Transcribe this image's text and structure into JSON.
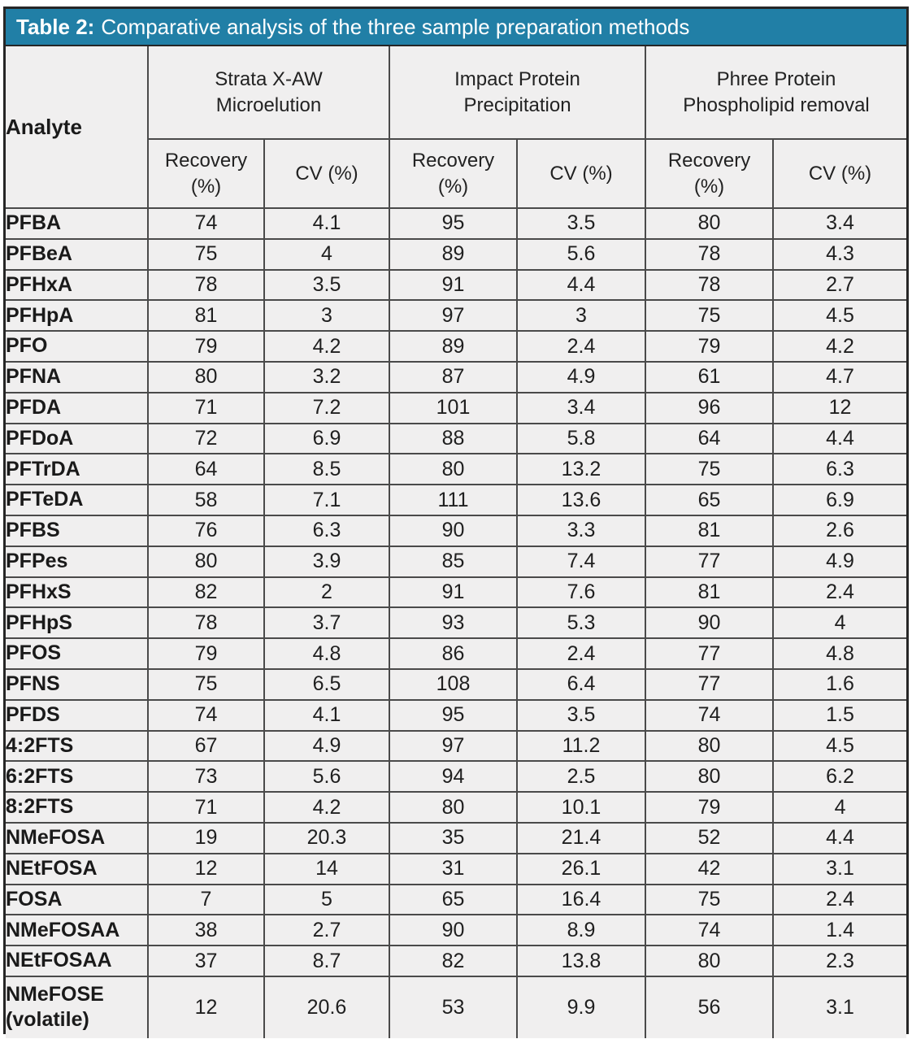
{
  "title": {
    "prefix": "Table 2:",
    "rest": "Comparative analysis of the three sample preparation methods"
  },
  "header": {
    "analyte_label": "Analyte",
    "groups": [
      {
        "line1": "Strata X-AW",
        "line2": "Microelution"
      },
      {
        "line1": "Impact Protein",
        "line2": "Precipitation"
      },
      {
        "line1": "Phree Protein",
        "line2": "Phospholipid removal"
      }
    ],
    "subheaders": [
      {
        "line1": "Recovery",
        "line2": "(%)"
      },
      {
        "line1": "CV (%)",
        "line2": ""
      },
      {
        "line1": "Recovery",
        "line2": "(%)"
      },
      {
        "line1": "CV (%)",
        "line2": ""
      },
      {
        "line1": "Recovery",
        "line2": "(%)"
      },
      {
        "line1": "CV (%)",
        "line2": ""
      }
    ]
  },
  "rows": [
    {
      "analyte": "PFBA",
      "analyte2": "",
      "values": [
        "74",
        "4.1",
        "95",
        "3.5",
        "80",
        "3.4"
      ]
    },
    {
      "analyte": "PFBeA",
      "analyte2": "",
      "values": [
        "75",
        "4",
        "89",
        "5.6",
        "78",
        "4.3"
      ]
    },
    {
      "analyte": "PFHxA",
      "analyte2": "",
      "values": [
        "78",
        "3.5",
        "91",
        "4.4",
        "78",
        "2.7"
      ]
    },
    {
      "analyte": "PFHpA",
      "analyte2": "",
      "values": [
        "81",
        "3",
        "97",
        "3",
        "75",
        "4.5"
      ]
    },
    {
      "analyte": "PFO",
      "analyte2": "",
      "values": [
        "79",
        "4.2",
        "89",
        "2.4",
        "79",
        "4.2"
      ]
    },
    {
      "analyte": "PFNA",
      "analyte2": "",
      "values": [
        "80",
        "3.2",
        "87",
        "4.9",
        "61",
        "4.7"
      ]
    },
    {
      "analyte": "PFDA",
      "analyte2": "",
      "values": [
        "71",
        "7.2",
        "101",
        "3.4",
        "96",
        "12"
      ]
    },
    {
      "analyte": "PFDoA",
      "analyte2": "",
      "values": [
        "72",
        "6.9",
        "88",
        "5.8",
        "64",
        "4.4"
      ]
    },
    {
      "analyte": "PFTrDA",
      "analyte2": "",
      "values": [
        "64",
        "8.5",
        "80",
        "13.2",
        "75",
        "6.3"
      ]
    },
    {
      "analyte": "PFTeDA",
      "analyte2": "",
      "values": [
        "58",
        "7.1",
        "111",
        "13.6",
        "65",
        "6.9"
      ]
    },
    {
      "analyte": "PFBS",
      "analyte2": "",
      "values": [
        "76",
        "6.3",
        "90",
        "3.3",
        "81",
        "2.6"
      ]
    },
    {
      "analyte": "PFPes",
      "analyte2": "",
      "values": [
        "80",
        "3.9",
        "85",
        "7.4",
        "77",
        "4.9"
      ]
    },
    {
      "analyte": "PFHxS",
      "analyte2": "",
      "values": [
        "82",
        "2",
        "91",
        "7.6",
        "81",
        "2.4"
      ]
    },
    {
      "analyte": "PFHpS",
      "analyte2": "",
      "values": [
        "78",
        "3.7",
        "93",
        "5.3",
        "90",
        "4"
      ]
    },
    {
      "analyte": "PFOS",
      "analyte2": "",
      "values": [
        "79",
        "4.8",
        "86",
        "2.4",
        "77",
        "4.8"
      ]
    },
    {
      "analyte": "PFNS",
      "analyte2": "",
      "values": [
        "75",
        "6.5",
        "108",
        "6.4",
        "77",
        "1.6"
      ]
    },
    {
      "analyte": "PFDS",
      "analyte2": "",
      "values": [
        "74",
        "4.1",
        "95",
        "3.5",
        "74",
        "1.5"
      ]
    },
    {
      "analyte": "4:2FTS",
      "analyte2": "",
      "values": [
        "67",
        "4.9",
        "97",
        "11.2",
        "80",
        "4.5"
      ]
    },
    {
      "analyte": "6:2FTS",
      "analyte2": "",
      "values": [
        "73",
        "5.6",
        "94",
        "2.5",
        "80",
        "6.2"
      ]
    },
    {
      "analyte": "8:2FTS",
      "analyte2": "",
      "values": [
        "71",
        "4.2",
        "80",
        "10.1",
        "79",
        "4"
      ]
    },
    {
      "analyte": "NMeFOSA",
      "analyte2": "",
      "values": [
        "19",
        "20.3",
        "35",
        "21.4",
        "52",
        "4.4"
      ]
    },
    {
      "analyte": "NEtFOSA",
      "analyte2": "",
      "values": [
        "12",
        "14",
        "31",
        "26.1",
        "42",
        "3.1"
      ]
    },
    {
      "analyte": "FOSA",
      "analyte2": "",
      "values": [
        "7",
        "5",
        "65",
        "16.4",
        "75",
        "2.4"
      ]
    },
    {
      "analyte": "NMeFOSAA",
      "analyte2": "",
      "values": [
        "38",
        "2.7",
        "90",
        "8.9",
        "74",
        "1.4"
      ]
    },
    {
      "analyte": "NEtFOSAA",
      "analyte2": "",
      "values": [
        "37",
        "8.7",
        "82",
        "13.8",
        "80",
        "2.3"
      ]
    },
    {
      "analyte": "NMeFOSE",
      "analyte2": "(volatile)",
      "values": [
        "12",
        "20.6",
        "53",
        "9.9",
        "56",
        "3.1"
      ]
    }
  ],
  "colors": {
    "title_bar_bg": "#217FA6",
    "title_text": "#FFFFFF",
    "body_bg": "#F0EFEF",
    "grid_line": "#4A4A4A",
    "frame_border": "#262626",
    "text": "#1A1A1A"
  }
}
